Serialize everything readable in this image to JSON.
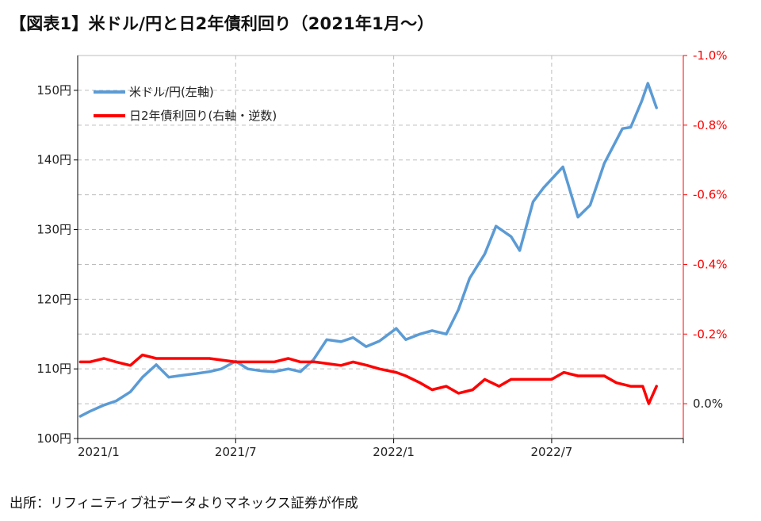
{
  "title": "【図表1】米ドル/円と日2年債利回り（2021年1月～）",
  "source": "出所：リフィニティブ社データよりマネックス証券が作成",
  "colors": {
    "usdjpy": "#5b9bd5",
    "jgb2y": "#ff0000",
    "grid": "#bdbdbd",
    "axis": "#000000"
  },
  "chart_data": {
    "type": "line",
    "x_ticks": [
      "2021/1",
      "2021/7",
      "2022/1",
      "2022/7"
    ],
    "x_range": [
      "2021/1",
      "2022/12"
    ],
    "y_left": {
      "ticks": [
        "100円",
        "110円",
        "120円",
        "130円",
        "140円",
        "150円"
      ],
      "range": [
        100,
        155
      ]
    },
    "y_right": {
      "ticks": [
        "0.0%",
        "-0.2%",
        "-0.4%",
        "-0.6%",
        "-0.8%",
        "-1.0%"
      ],
      "range": [
        0.1,
        -1.0
      ],
      "inverted": true
    },
    "grid": true,
    "legend": "top-left",
    "series": [
      {
        "name": "米ドル/円(左軸)",
        "axis": "left",
        "points": [
          [
            "2021-01-04",
            103.2
          ],
          [
            "2021-01-15",
            103.9
          ],
          [
            "2021-02-01",
            104.8
          ],
          [
            "2021-02-15",
            105.4
          ],
          [
            "2021-03-01",
            106.7
          ],
          [
            "2021-03-15",
            108.8
          ],
          [
            "2021-03-31",
            110.6
          ],
          [
            "2021-04-15",
            108.8
          ],
          [
            "2021-05-01",
            109.1
          ],
          [
            "2021-05-15",
            109.3
          ],
          [
            "2021-06-01",
            109.6
          ],
          [
            "2021-06-15",
            110.0
          ],
          [
            "2021-07-01",
            111.1
          ],
          [
            "2021-07-15",
            110.0
          ],
          [
            "2021-08-01",
            109.7
          ],
          [
            "2021-08-15",
            109.6
          ],
          [
            "2021-09-01",
            110.0
          ],
          [
            "2021-09-15",
            109.6
          ],
          [
            "2021-09-30",
            111.3
          ],
          [
            "2021-10-15",
            114.2
          ],
          [
            "2021-11-01",
            113.9
          ],
          [
            "2021-11-15",
            114.5
          ],
          [
            "2021-11-30",
            113.2
          ],
          [
            "2021-12-15",
            114.0
          ],
          [
            "2022-01-04",
            115.8
          ],
          [
            "2022-01-15",
            114.2
          ],
          [
            "2022-02-01",
            115.0
          ],
          [
            "2022-02-15",
            115.5
          ],
          [
            "2022-03-01",
            115.0
          ],
          [
            "2022-03-15",
            118.5
          ],
          [
            "2022-03-28",
            123.0
          ],
          [
            "2022-04-15",
            126.5
          ],
          [
            "2022-04-28",
            130.5
          ],
          [
            "2022-05-15",
            129.0
          ],
          [
            "2022-05-25",
            127.0
          ],
          [
            "2022-06-10",
            134.0
          ],
          [
            "2022-06-22",
            136.0
          ],
          [
            "2022-07-14",
            139.0
          ],
          [
            "2022-08-01",
            131.8
          ],
          [
            "2022-08-15",
            133.5
          ],
          [
            "2022-09-01",
            139.5
          ],
          [
            "2022-09-22",
            144.5
          ],
          [
            "2022-10-01",
            144.7
          ],
          [
            "2022-10-14",
            148.5
          ],
          [
            "2022-10-21",
            151.0
          ],
          [
            "2022-10-31",
            147.5
          ]
        ]
      },
      {
        "name": "日2年債利回り(右軸・逆数)",
        "axis": "right",
        "points": [
          [
            "2021-01-04",
            -0.12
          ],
          [
            "2021-01-15",
            -0.12
          ],
          [
            "2021-02-01",
            -0.13
          ],
          [
            "2021-02-15",
            -0.12
          ],
          [
            "2021-03-01",
            -0.11
          ],
          [
            "2021-03-15",
            -0.14
          ],
          [
            "2021-03-31",
            -0.13
          ],
          [
            "2021-04-15",
            -0.13
          ],
          [
            "2021-05-01",
            -0.13
          ],
          [
            "2021-06-01",
            -0.13
          ],
          [
            "2021-07-01",
            -0.12
          ],
          [
            "2021-08-01",
            -0.12
          ],
          [
            "2021-08-15",
            -0.12
          ],
          [
            "2021-09-01",
            -0.13
          ],
          [
            "2021-09-15",
            -0.12
          ],
          [
            "2021-10-01",
            -0.12
          ],
          [
            "2021-11-01",
            -0.11
          ],
          [
            "2021-11-15",
            -0.12
          ],
          [
            "2021-12-01",
            -0.11
          ],
          [
            "2021-12-15",
            -0.1
          ],
          [
            "2022-01-04",
            -0.09
          ],
          [
            "2022-01-15",
            -0.08
          ],
          [
            "2022-02-01",
            -0.06
          ],
          [
            "2022-02-15",
            -0.04
          ],
          [
            "2022-03-01",
            -0.05
          ],
          [
            "2022-03-15",
            -0.03
          ],
          [
            "2022-04-01",
            -0.04
          ],
          [
            "2022-04-15",
            -0.07
          ],
          [
            "2022-05-01",
            -0.05
          ],
          [
            "2022-05-15",
            -0.07
          ],
          [
            "2022-06-01",
            -0.07
          ],
          [
            "2022-06-15",
            -0.07
          ],
          [
            "2022-07-01",
            -0.07
          ],
          [
            "2022-07-15",
            -0.09
          ],
          [
            "2022-08-01",
            -0.08
          ],
          [
            "2022-08-15",
            -0.08
          ],
          [
            "2022-09-01",
            -0.08
          ],
          [
            "2022-09-15",
            -0.06
          ],
          [
            "2022-10-01",
            -0.05
          ],
          [
            "2022-10-15",
            -0.05
          ],
          [
            "2022-10-22",
            0.0
          ],
          [
            "2022-10-31",
            -0.05
          ]
        ]
      }
    ]
  }
}
